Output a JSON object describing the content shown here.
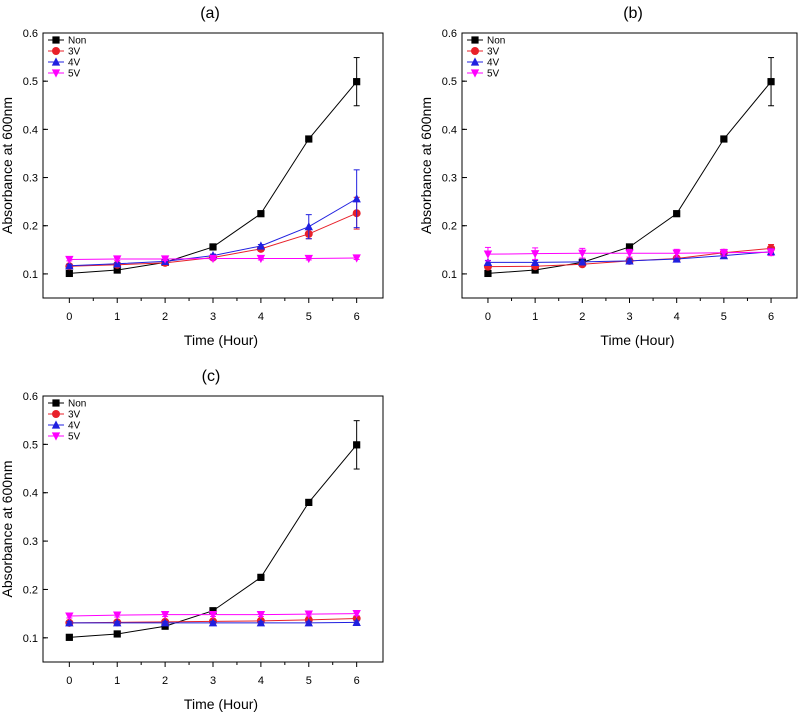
{
  "chart_data": [
    {
      "panel": "(a)",
      "type": "line",
      "xlabel": "Time (Hour)",
      "ylabel": "Absorbance at 600nm",
      "x": [
        0,
        1,
        2,
        3,
        4,
        5,
        6
      ],
      "xticks": [
        0,
        1,
        2,
        3,
        4,
        5,
        6
      ],
      "yticks": [
        0.1,
        0.2,
        0.3,
        0.4,
        0.5,
        0.6
      ],
      "xlim": [
        -0.55,
        6.55
      ],
      "ylim": [
        0.05,
        0.6
      ],
      "legend_position": "top-left",
      "series": [
        {
          "name": "Non",
          "color": "#000000",
          "marker": "square",
          "values": [
            0.101,
            0.108,
            0.124,
            0.156,
            0.225,
            0.38,
            0.499
          ],
          "errors": [
            0.004,
            0.003,
            0.003,
            0.003,
            0.003,
            0.005,
            0.05
          ]
        },
        {
          "name": "3V",
          "color": "#e8202a",
          "marker": "circle",
          "values": [
            0.116,
            0.119,
            0.123,
            0.134,
            0.152,
            0.183,
            0.226
          ],
          "errors": [
            0.003,
            0.003,
            0.003,
            0.003,
            0.003,
            0.01,
            0.033
          ]
        },
        {
          "name": "4V",
          "color": "#2020e0",
          "marker": "triangle-up",
          "values": [
            0.117,
            0.121,
            0.126,
            0.138,
            0.158,
            0.198,
            0.256
          ],
          "errors": [
            0.003,
            0.003,
            0.003,
            0.003,
            0.003,
            0.025,
            0.06
          ]
        },
        {
          "name": "5V",
          "color": "#ff00ff",
          "marker": "triangle-down",
          "values": [
            0.13,
            0.131,
            0.131,
            0.132,
            0.132,
            0.132,
            0.133
          ],
          "errors": [
            0.003,
            0.003,
            0.003,
            0.003,
            0.003,
            0.003,
            0.003
          ]
        }
      ]
    },
    {
      "panel": "(b)",
      "type": "line",
      "xlabel": "Time (Hour)",
      "ylabel": "Absorbance at 600nm",
      "x": [
        0,
        1,
        2,
        3,
        4,
        5,
        6
      ],
      "xticks": [
        0,
        1,
        2,
        3,
        4,
        5,
        6
      ],
      "yticks": [
        0.1,
        0.2,
        0.3,
        0.4,
        0.5,
        0.6
      ],
      "xlim": [
        -0.55,
        6.55
      ],
      "ylim": [
        0.05,
        0.6
      ],
      "legend_position": "top-left",
      "series": [
        {
          "name": "Non",
          "color": "#000000",
          "marker": "square",
          "values": [
            0.101,
            0.108,
            0.124,
            0.156,
            0.225,
            0.38,
            0.499
          ],
          "errors": [
            0.004,
            0.003,
            0.003,
            0.003,
            0.003,
            0.005,
            0.05
          ]
        },
        {
          "name": "3V",
          "color": "#e8202a",
          "marker": "circle",
          "values": [
            0.115,
            0.116,
            0.12,
            0.127,
            0.132,
            0.144,
            0.153
          ],
          "errors": [
            0.004,
            0.004,
            0.004,
            0.004,
            0.004,
            0.004,
            0.008
          ]
        },
        {
          "name": "4V",
          "color": "#2020e0",
          "marker": "triangle-up",
          "values": [
            0.124,
            0.124,
            0.125,
            0.127,
            0.131,
            0.138,
            0.146
          ],
          "errors": [
            0.004,
            0.004,
            0.004,
            0.004,
            0.004,
            0.004,
            0.006
          ]
        },
        {
          "name": "5V",
          "color": "#ff00ff",
          "marker": "triangle-down",
          "values": [
            0.141,
            0.142,
            0.143,
            0.143,
            0.143,
            0.144,
            0.145
          ],
          "errors": [
            0.014,
            0.012,
            0.01,
            0.008,
            0.008,
            0.007,
            0.007
          ]
        }
      ]
    },
    {
      "panel": "(c)",
      "type": "line",
      "xlabel": "Time (Hour)",
      "ylabel": "Absorbance at 600nm",
      "x": [
        0,
        1,
        2,
        3,
        4,
        5,
        6
      ],
      "xticks": [
        0,
        1,
        2,
        3,
        4,
        5,
        6
      ],
      "yticks": [
        0.1,
        0.2,
        0.3,
        0.4,
        0.5,
        0.6
      ],
      "xlim": [
        -0.55,
        6.55
      ],
      "ylim": [
        0.05,
        0.6
      ],
      "legend_position": "top-left",
      "series": [
        {
          "name": "Non",
          "color": "#000000",
          "marker": "square",
          "values": [
            0.101,
            0.108,
            0.124,
            0.156,
            0.225,
            0.38,
            0.499
          ],
          "errors": [
            0.004,
            0.003,
            0.003,
            0.003,
            0.003,
            0.005,
            0.05
          ]
        },
        {
          "name": "3V",
          "color": "#e8202a",
          "marker": "circle",
          "values": [
            0.131,
            0.132,
            0.133,
            0.134,
            0.135,
            0.137,
            0.14
          ],
          "errors": [
            0.003,
            0.003,
            0.003,
            0.003,
            0.003,
            0.003,
            0.003
          ]
        },
        {
          "name": "4V",
          "color": "#2020e0",
          "marker": "triangle-up",
          "values": [
            0.131,
            0.131,
            0.131,
            0.131,
            0.131,
            0.131,
            0.132
          ],
          "errors": [
            0.003,
            0.003,
            0.003,
            0.003,
            0.003,
            0.003,
            0.003
          ]
        },
        {
          "name": "5V",
          "color": "#ff00ff",
          "marker": "triangle-down",
          "values": [
            0.145,
            0.147,
            0.148,
            0.148,
            0.148,
            0.149,
            0.15
          ],
          "errors": [
            0.004,
            0.004,
            0.004,
            0.004,
            0.004,
            0.004,
            0.004
          ]
        }
      ]
    }
  ]
}
